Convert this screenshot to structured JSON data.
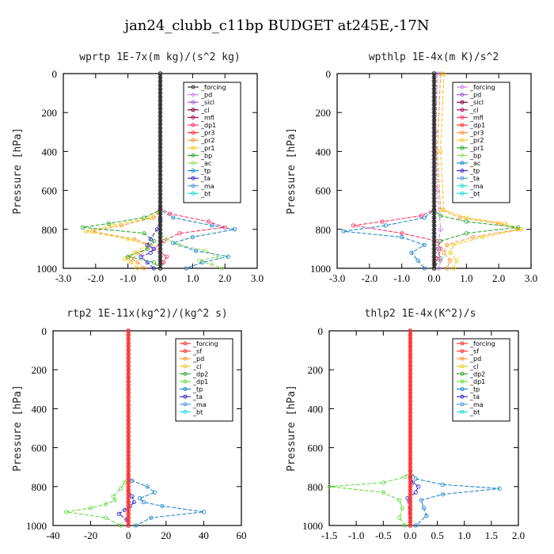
{
  "figure": {
    "title": "jan24_clubb_c11bp  BUDGET at245E,-17N"
  },
  "chart_data": [
    {
      "type": "line",
      "title": "wprtp  1E-7x(m kg)/(s^2 kg)",
      "ylabel": "Pressure [hPa]",
      "xlim": [
        -3,
        3
      ],
      "ylim": [
        1000,
        0
      ],
      "xticks": [
        "-3.0",
        "-2.0",
        "-1.0",
        "0.0",
        "1.0",
        "2.0",
        "3.0"
      ],
      "yticks": [
        "0",
        "200",
        "400",
        "600",
        "800",
        "1000"
      ],
      "legend": [
        "_forcing",
        "_pd",
        "_sicl",
        "_cl",
        "_mfl",
        "_dp1",
        "_pr3",
        "_pr2",
        "_pr1",
        "_bp",
        "_ac",
        "_tp",
        "_ta",
        "_ma",
        "_bt"
      ],
      "legend_colors": [
        "#333333",
        "#cc88ee",
        "#9966cc",
        "#880044",
        "#aa1155",
        "#ff3366",
        "#ff3333",
        "#ff9933",
        "#eecc22",
        "#33aa33",
        "#99dd66",
        "#2288cc",
        "#3333cc",
        "#5599dd",
        "#22dddd"
      ],
      "series": [
        {
          "name": "_pr2",
          "color": "#ff9933",
          "x": [
            0,
            0,
            -0.2,
            -1.2,
            -2.1,
            -0.8,
            -0.3,
            -0.6,
            -0.9,
            -0.7,
            -0.5
          ],
          "y": [
            0,
            700,
            740,
            780,
            810,
            850,
            880,
            920,
            950,
            970,
            1000
          ]
        },
        {
          "name": "_pr1",
          "color": "#eecc22",
          "x": [
            0,
            0,
            -0.3,
            -1.5,
            -2.3,
            -1.0,
            -0.4,
            -0.8,
            -1.1,
            -0.9,
            -0.7
          ],
          "y": [
            0,
            700,
            740,
            780,
            810,
            850,
            880,
            920,
            950,
            970,
            1000
          ]
        },
        {
          "name": "_bp",
          "color": "#33aa33",
          "x": [
            0,
            0,
            -0.5,
            -1.6,
            -2.4,
            -0.5,
            -0.2,
            -0.4,
            -1.0,
            -0.2,
            0
          ],
          "y": [
            0,
            700,
            740,
            770,
            790,
            820,
            860,
            900,
            940,
            970,
            1000
          ]
        },
        {
          "name": "_tp",
          "color": "#2288cc",
          "x": [
            0,
            0,
            0.4,
            1.6,
            2.3,
            1.0,
            0.4,
            1.1,
            2.1,
            1.3,
            0.8
          ],
          "y": [
            0,
            700,
            740,
            780,
            800,
            840,
            870,
            910,
            940,
            970,
            1000
          ]
        },
        {
          "name": "_dp1",
          "color": "#ff3366",
          "x": [
            0,
            0,
            0.3,
            1.5,
            2.0,
            0.6,
            0.1,
            -0.2,
            0.2,
            0.1,
            0
          ],
          "y": [
            0,
            690,
            720,
            760,
            790,
            820,
            860,
            900,
            940,
            970,
            1000
          ]
        },
        {
          "name": "_ta",
          "color": "#3333cc",
          "x": [
            0,
            0,
            -0.1,
            -0.3,
            -0.4,
            -0.2,
            -0.3,
            -0.6,
            -0.4,
            -0.2
          ],
          "y": [
            0,
            750,
            800,
            850,
            880,
            900,
            920,
            940,
            970,
            1000
          ]
        },
        {
          "name": "_ac",
          "color": "#99dd66",
          "x": [
            0,
            0,
            0.2,
            0.6,
            1.4,
            1.8,
            1.2,
            1.6,
            1.9
          ],
          "y": [
            0,
            820,
            850,
            880,
            910,
            940,
            960,
            980,
            1000
          ]
        },
        {
          "name": "_forcing",
          "color": "#333333",
          "x": [
            0,
            0
          ],
          "y": [
            0,
            1000
          ]
        }
      ]
    },
    {
      "type": "line",
      "title": "wpthlp  1E-4x(m K)/s^2",
      "ylabel": "Pressure [hPa]",
      "xlim": [
        -3,
        3
      ],
      "ylim": [
        1000,
        0
      ],
      "xticks": [
        "-3.0",
        "-2.0",
        "-1.0",
        "0.0",
        "1.0",
        "2.0",
        "3.0"
      ],
      "yticks": [
        "0",
        "200",
        "400",
        "600",
        "800",
        "1000"
      ],
      "legend": [
        "_forcing",
        "_pd",
        "_sicl",
        "_cl",
        "_mfl",
        "_dp1",
        "_pr3",
        "_pr2",
        "_pr1",
        "_bp",
        "_ac",
        "_tp",
        "_ta",
        "_ma",
        "_bt"
      ],
      "legend_colors": [
        "#cc88ee",
        "#9966cc",
        "#880044",
        "#aa1155",
        "#ff3366",
        "#ff3333",
        "#ff9933",
        "#eecc22",
        "#33aa33",
        "#99dd66",
        "#2288cc",
        "#3333cc",
        "#5599dd",
        "#22dddd",
        "#22dddd"
      ],
      "series": [
        {
          "name": "_pr2",
          "color": "#ff9933",
          "x": [
            0.2,
            0.1,
            0.2,
            0.8,
            2.0,
            2.6,
            1.2,
            0.4,
            0.3,
            0.5,
            0.4
          ],
          "y": [
            0,
            400,
            700,
            740,
            770,
            800,
            840,
            880,
            920,
            960,
            1000
          ]
        },
        {
          "name": "_pr1",
          "color": "#eecc22",
          "x": [
            0.3,
            0.2,
            0.3,
            1.0,
            2.2,
            2.7,
            1.5,
            0.6,
            0.5,
            0.7,
            0.6
          ],
          "y": [
            0,
            400,
            700,
            740,
            770,
            800,
            840,
            880,
            920,
            960,
            1000
          ]
        },
        {
          "name": "_bp",
          "color": "#33aa33",
          "x": [
            0,
            0,
            0.2,
            1.0,
            2.6,
            1.0,
            0.2,
            0.1,
            0.2,
            0
          ],
          "y": [
            0,
            700,
            730,
            760,
            790,
            820,
            860,
            900,
            950,
            1000
          ]
        },
        {
          "name": "_tp",
          "color": "#2288cc",
          "x": [
            0,
            0,
            -0.3,
            -1.5,
            -2.8,
            -1.0,
            -0.3,
            -0.7,
            -0.5,
            -0.3
          ],
          "y": [
            0,
            700,
            740,
            780,
            810,
            840,
            880,
            920,
            960,
            1000
          ]
        },
        {
          "name": "_dp1",
          "color": "#ff3366",
          "x": [
            0,
            0,
            -0.4,
            -1.6,
            -2.5,
            -1.0,
            0.1,
            0.2,
            0.1,
            0
          ],
          "y": [
            0,
            700,
            730,
            760,
            780,
            820,
            860,
            900,
            950,
            1000
          ]
        },
        {
          "name": "_pd",
          "color": "#cc88ee",
          "x": [
            0.1,
            0.05,
            0.1,
            0.2,
            0.1,
            0.2,
            0.15
          ],
          "y": [
            0,
            300,
            600,
            800,
            900,
            960,
            1000
          ]
        },
        {
          "name": "_forcing",
          "color": "#333333",
          "x": [
            0,
            0
          ],
          "y": [
            0,
            1000
          ]
        }
      ]
    },
    {
      "type": "line",
      "title": "rtp2  1E-11x(kg^2)/(kg^2 s)",
      "ylabel": "Pressure [hPa]",
      "xlim": [
        -40,
        60
      ],
      "ylim": [
        1000,
        0
      ],
      "xticks": [
        "-40",
        "-20",
        "0",
        "20",
        "40",
        "60"
      ],
      "yticks": [
        "0",
        "200",
        "400",
        "600",
        "800",
        "1000"
      ],
      "legend": [
        "_forcing",
        "_sf",
        "_pd",
        "_cl",
        "_dp2",
        "_dp1",
        "_tp",
        "_ta",
        "_ma",
        "_bt"
      ],
      "legend_colors": [
        "#ff3333",
        "#ff3333",
        "#ff9933",
        "#eecc22",
        "#33aa33",
        "#66dd44",
        "#2288cc",
        "#3333cc",
        "#5599dd",
        "#22dddd"
      ],
      "series": [
        {
          "name": "_dp1",
          "color": "#66dd44",
          "x": [
            0,
            0,
            -2,
            -4,
            -8,
            -7,
            -12,
            -20,
            -33,
            -12,
            -4
          ],
          "y": [
            0,
            740,
            780,
            810,
            850,
            870,
            890,
            910,
            930,
            960,
            1000
          ]
        },
        {
          "name": "_tp",
          "color": "#2288cc",
          "x": [
            0,
            0,
            2,
            10,
            14,
            6,
            8,
            18,
            40,
            12,
            4
          ],
          "y": [
            0,
            740,
            770,
            800,
            830,
            860,
            880,
            900,
            930,
            960,
            1000
          ]
        },
        {
          "name": "_ta",
          "color": "#3333cc",
          "x": [
            0,
            0,
            2,
            3,
            1,
            -2,
            -5,
            -1,
            0
          ],
          "y": [
            0,
            820,
            850,
            880,
            900,
            920,
            940,
            970,
            1000
          ]
        },
        {
          "name": "_forcing",
          "color": "#ff3333",
          "x": [
            0,
            0
          ],
          "y": [
            0,
            1000
          ]
        }
      ]
    },
    {
      "type": "line",
      "title": "thlp2  1E-4x(K^2)/s",
      "ylabel": "Pressure [hPa]",
      "xlim": [
        -1.5,
        2.0
      ],
      "ylim": [
        1000,
        0
      ],
      "xticks": [
        "-1.5",
        "-1.0",
        "-0.5",
        "0.0",
        "0.5",
        "1.0",
        "1.5",
        "2.0"
      ],
      "yticks": [
        "0",
        "200",
        "400",
        "600",
        "800",
        "1000"
      ],
      "legend": [
        "_forcing",
        "_sf",
        "_pd",
        "_cl",
        "_dp2",
        "_dp1",
        "_tp",
        "_ta",
        "_ma",
        "_bt"
      ],
      "legend_colors": [
        "#ff3333",
        "#ff3333",
        "#ff9933",
        "#eecc22",
        "#33aa33",
        "#66dd44",
        "#2288cc",
        "#3333cc",
        "#5599dd",
        "#22dddd"
      ],
      "series": [
        {
          "name": "_dp1",
          "color": "#66dd44",
          "x": [
            0,
            0,
            -0.1,
            -0.5,
            -1.5,
            -0.5,
            -0.2,
            -0.15,
            -0.2,
            -0.1
          ],
          "y": [
            0,
            720,
            750,
            780,
            800,
            830,
            870,
            910,
            960,
            1000
          ]
        },
        {
          "name": "_tp",
          "color": "#2288cc",
          "x": [
            0,
            0,
            0.1,
            0.6,
            1.65,
            0.6,
            0.2,
            0.25,
            0.3,
            0.1
          ],
          "y": [
            0,
            720,
            760,
            790,
            810,
            840,
            870,
            910,
            950,
            1000
          ]
        },
        {
          "name": "_ta",
          "color": "#3333cc",
          "x": [
            0,
            0,
            0.05,
            0.15,
            0.1,
            -0.05,
            0
          ],
          "y": [
            0,
            750,
            780,
            800,
            830,
            860,
            1000
          ]
        },
        {
          "name": "_forcing",
          "color": "#ff3333",
          "x": [
            0,
            0
          ],
          "y": [
            0,
            1000
          ]
        }
      ]
    }
  ]
}
